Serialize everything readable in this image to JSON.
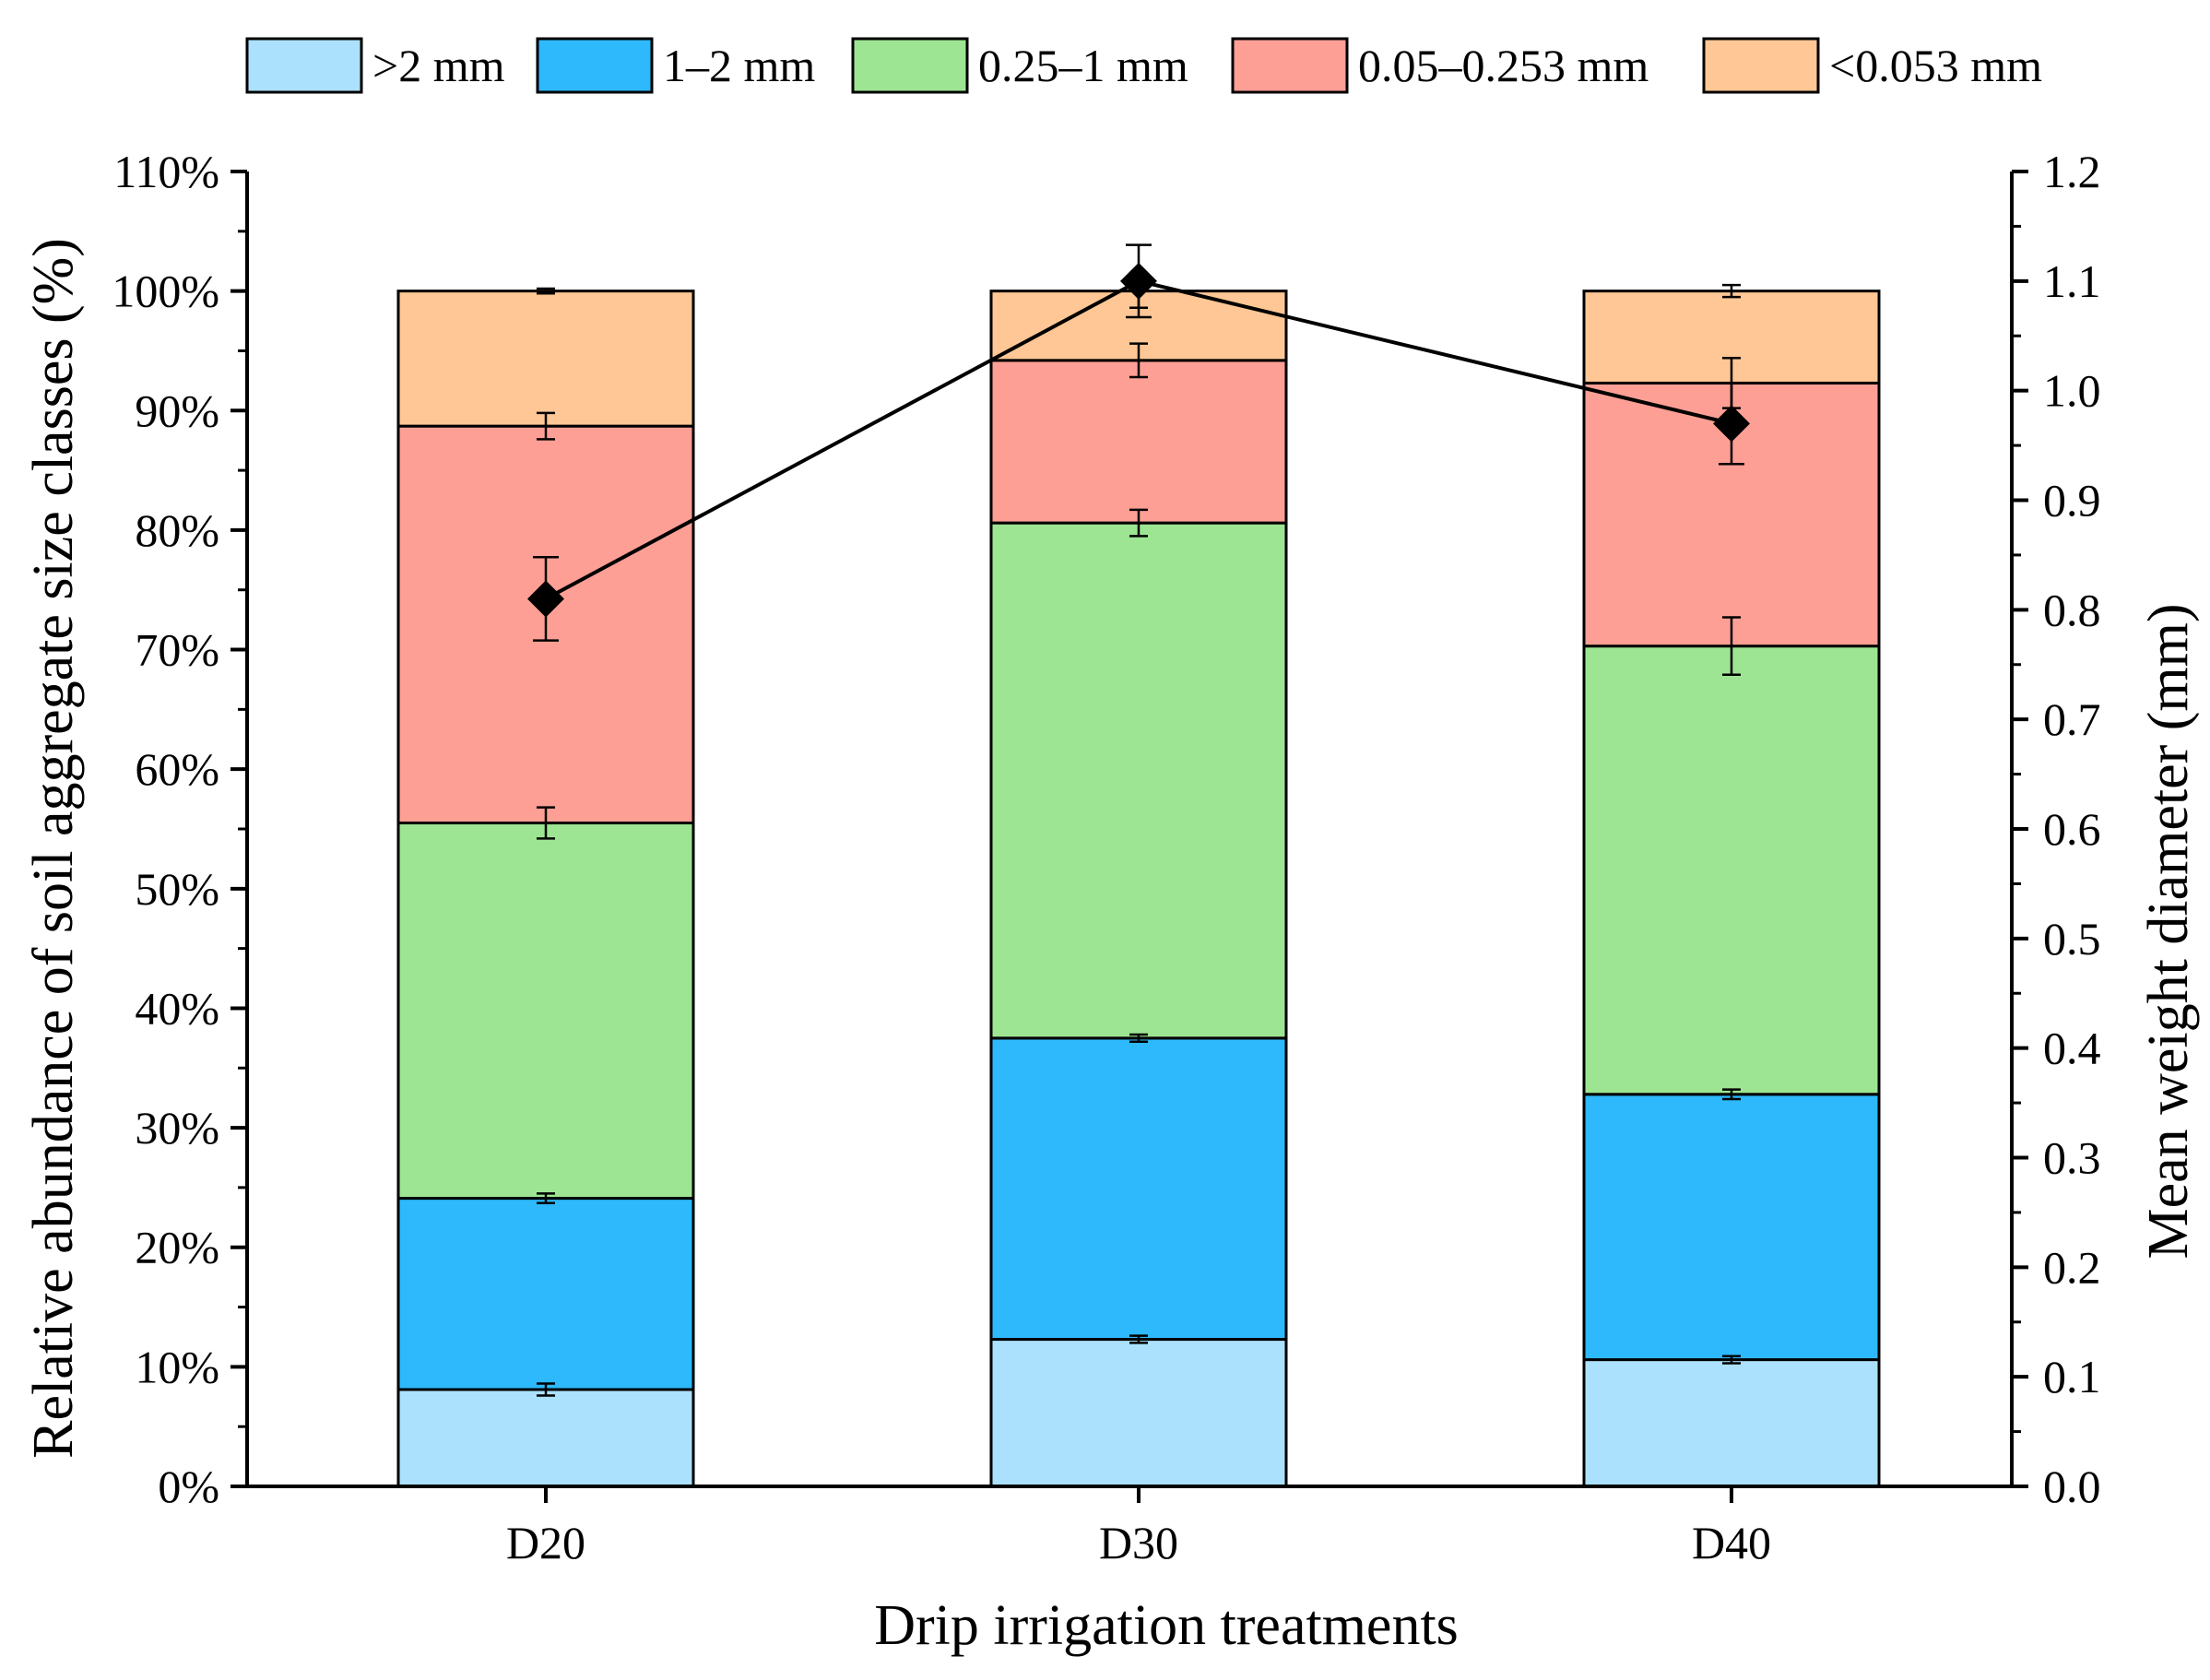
{
  "chart_data": {
    "type": "bar",
    "stacked": true,
    "title": "",
    "xlabel": "Drip irrigation treatments",
    "ylabel": "Relative abundance of soil aggregate size classes (%)",
    "ylabel_right": "Mean weight diameter  (mm)",
    "categories": [
      "D20",
      "D30",
      "D40"
    ],
    "ylim": [
      0,
      110
    ],
    "yticks": [
      0,
      10,
      20,
      30,
      40,
      50,
      60,
      70,
      80,
      90,
      100,
      110
    ],
    "ytick_labels": [
      "0%",
      "10%",
      "20%",
      "30%",
      "40%",
      "50%",
      "60%",
      "70%",
      "80%",
      "90%",
      "100%",
      "110%"
    ],
    "ylim_right": [
      0,
      1.2
    ],
    "yticks_right": [
      0.0,
      0.1,
      0.2,
      0.3,
      0.4,
      0.5,
      0.6,
      0.7,
      0.8,
      0.9,
      1.0,
      1.1,
      1.2
    ],
    "ytick_labels_right": [
      "0.0",
      "0.1",
      "0.2",
      "0.3",
      "0.4",
      "0.5",
      "0.6",
      "0.7",
      "0.8",
      "0.9",
      "1.0",
      "1.1",
      "1.2"
    ],
    "legend_position": "top",
    "series": [
      {
        "name": ">2 mm",
        "color": "#abe1fc",
        "values": [
          8.1,
          12.3,
          10.6
        ],
        "errors": [
          0.5,
          0.3,
          0.3
        ]
      },
      {
        "name": "1–2 mm",
        "color": "#2db9fb",
        "values": [
          16.0,
          25.2,
          22.2
        ],
        "errors": [
          0.4,
          0.3,
          0.4
        ]
      },
      {
        "name": "0.25–1 mm",
        "color": "#9de592",
        "values": [
          31.4,
          43.1,
          37.5
        ],
        "errors": [
          1.3,
          1.1,
          2.4
        ]
      },
      {
        "name": "0.05–0.253 mm",
        "color": "#fe9f95",
        "values": [
          33.2,
          13.6,
          22.0
        ],
        "errors": [
          1.1,
          1.4,
          2.1
        ]
      },
      {
        "name": "<0.053 mm",
        "color": "#fec795",
        "values": [
          11.3,
          5.8,
          7.7
        ],
        "errors": [
          0.2,
          1.4,
          0.5
        ]
      }
    ],
    "line_series": {
      "name": "Mean weight diameter",
      "axis": "right",
      "values": [
        0.81,
        1.1,
        0.97
      ],
      "errors": [
        0.038,
        0.033,
        0.037
      ],
      "color": "#000000"
    }
  }
}
